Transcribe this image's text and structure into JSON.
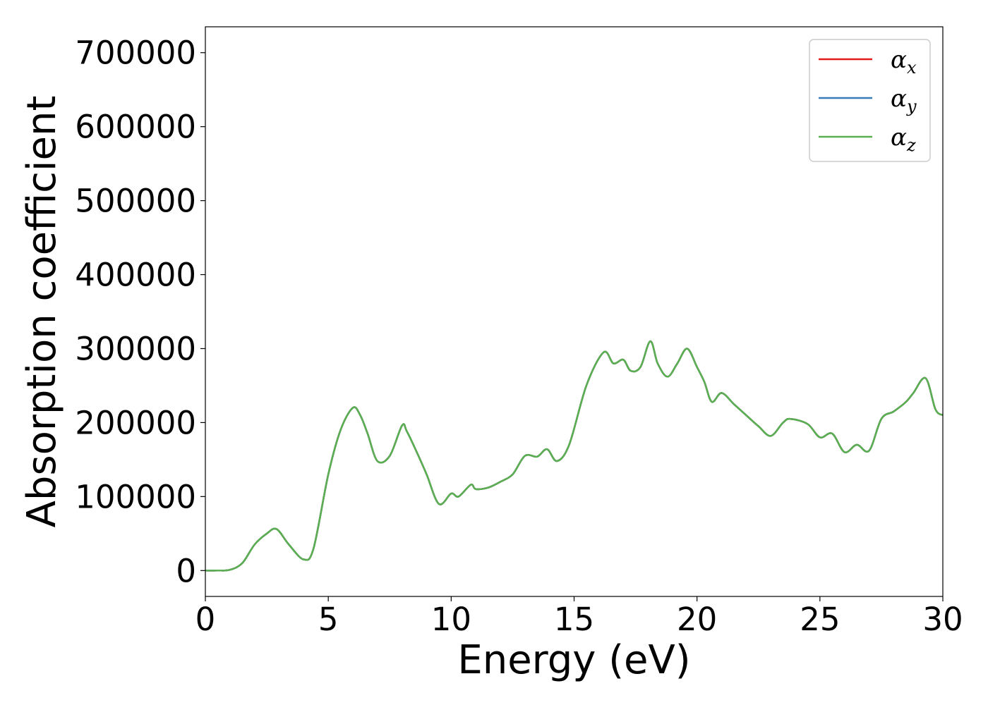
{
  "chart_data": {
    "type": "line",
    "title": "",
    "xlabel": "Energy (eV)",
    "ylabel": "Absorption coefficient",
    "xlim": [
      0,
      30
    ],
    "ylim": [
      -35000,
      735000
    ],
    "xticks": [
      0,
      5,
      10,
      15,
      20,
      25,
      30
    ],
    "xtick_labels": [
      "0",
      "5",
      "10",
      "15",
      "20",
      "25",
      "30"
    ],
    "yticks": [
      0,
      100000,
      200000,
      300000,
      400000,
      500000,
      600000,
      700000
    ],
    "ytick_labels": [
      "0",
      "100000",
      "200000",
      "300000",
      "400000",
      "500000",
      "600000",
      "700000"
    ],
    "grid": false,
    "legend_position": "top-right",
    "x": [
      0,
      0.5,
      1.0,
      1.5,
      2.0,
      2.5,
      2.9,
      3.4,
      4.0,
      4.4,
      5.0,
      5.5,
      6.0,
      6.3,
      6.6,
      7.0,
      7.5,
      8.0,
      8.2,
      8.6,
      9.0,
      9.5,
      10.0,
      10.3,
      10.8,
      11.0,
      11.5,
      12.0,
      12.5,
      13.0,
      13.5,
      13.9,
      14.3,
      14.8,
      15.5,
      16.2,
      16.6,
      17.0,
      17.3,
      17.7,
      18.1,
      18.4,
      18.8,
      19.2,
      19.6,
      20.0,
      20.3,
      20.6,
      21.0,
      21.5,
      22.0,
      22.5,
      23.0,
      23.5,
      23.8,
      24.5,
      25.0,
      25.5,
      26.0,
      26.5,
      27.0,
      27.5,
      28.0,
      28.5,
      28.8,
      29.3,
      29.7,
      30.0
    ],
    "series": [
      {
        "name": "α_x",
        "label_main": "α",
        "label_sub": "x",
        "color": "#e41a1c",
        "y": [
          0,
          0,
          1000,
          10000,
          35000,
          50000,
          56000,
          35000,
          15000,
          30000,
          130000,
          190000,
          220000,
          210000,
          185000,
          148000,
          155000,
          196000,
          188000,
          160000,
          130000,
          90000,
          104000,
          100000,
          116000,
          110000,
          112000,
          120000,
          130000,
          155000,
          154000,
          164000,
          148000,
          170000,
          250000,
          295000,
          280000,
          285000,
          270000,
          275000,
          310000,
          280000,
          262000,
          280000,
          300000,
          275000,
          255000,
          228000,
          240000,
          225000,
          210000,
          195000,
          182000,
          200000,
          205000,
          198000,
          180000,
          185000,
          160000,
          170000,
          162000,
          205000,
          215000,
          228000,
          240000,
          260000,
          218000,
          210000
        ]
      },
      {
        "name": "α_y",
        "label_main": "α",
        "label_sub": "y",
        "color": "#377eb8",
        "y": [
          0,
          0,
          1000,
          10000,
          35000,
          50000,
          56000,
          35000,
          15000,
          30000,
          130000,
          190000,
          220000,
          210000,
          185000,
          148000,
          155000,
          196000,
          188000,
          160000,
          130000,
          90000,
          104000,
          100000,
          116000,
          110000,
          112000,
          120000,
          130000,
          155000,
          154000,
          164000,
          148000,
          170000,
          250000,
          295000,
          280000,
          285000,
          270000,
          275000,
          310000,
          280000,
          262000,
          280000,
          300000,
          275000,
          255000,
          228000,
          240000,
          225000,
          210000,
          195000,
          182000,
          200000,
          205000,
          198000,
          180000,
          185000,
          160000,
          170000,
          162000,
          205000,
          215000,
          228000,
          240000,
          260000,
          218000,
          210000
        ]
      },
      {
        "name": "α_z",
        "label_main": "α",
        "label_sub": "z",
        "color": "#5aaf50",
        "y": [
          0,
          0,
          1000,
          10000,
          35000,
          50000,
          56000,
          35000,
          15000,
          30000,
          130000,
          190000,
          220000,
          210000,
          185000,
          148000,
          155000,
          196000,
          188000,
          160000,
          130000,
          90000,
          104000,
          100000,
          116000,
          110000,
          112000,
          120000,
          130000,
          155000,
          154000,
          164000,
          148000,
          170000,
          250000,
          295000,
          280000,
          285000,
          270000,
          275000,
          310000,
          280000,
          262000,
          280000,
          300000,
          275000,
          255000,
          228000,
          240000,
          225000,
          210000,
          195000,
          182000,
          200000,
          205000,
          198000,
          180000,
          185000,
          160000,
          170000,
          162000,
          205000,
          215000,
          228000,
          240000,
          260000,
          218000,
          210000
        ]
      }
    ]
  }
}
